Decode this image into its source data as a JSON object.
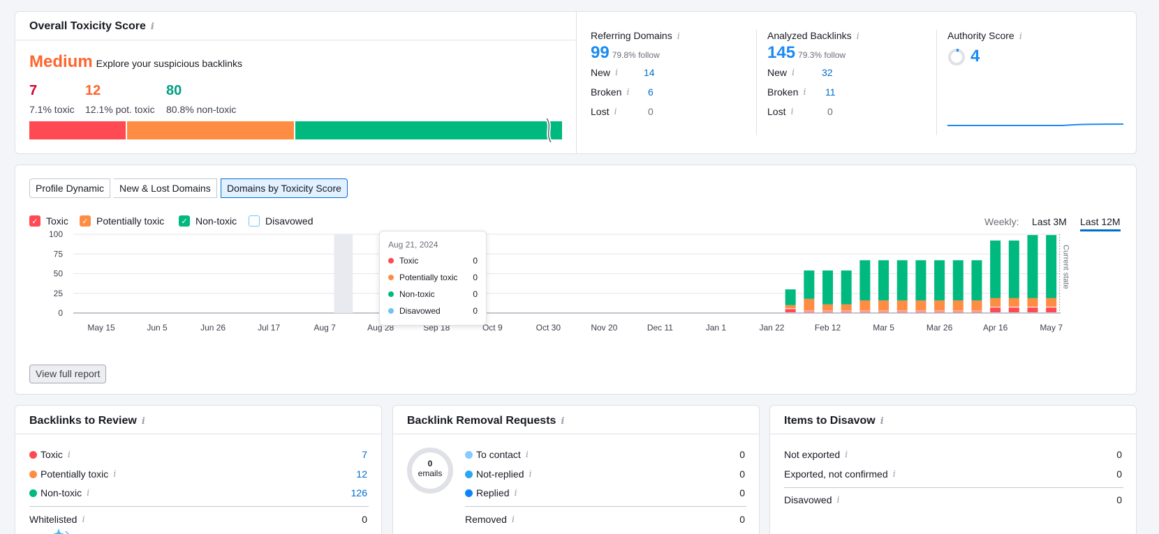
{
  "toxicity": {
    "title": "Overall Toxicity Score",
    "level": "Medium",
    "level_color": "#ff642d",
    "explore": "Explore your suspicious backlinks",
    "toxic_count": "7",
    "toxic_pct": "7.1% toxic",
    "pot_count": "12",
    "pot_pct": "12.1% pot. toxic",
    "non_count": "80",
    "non_pct": "80.8% non-toxic",
    "bar": {
      "toxic": 0.183,
      "pot": 0.316,
      "non": 0.501
    },
    "colors": {
      "toxic": "#ff4953",
      "pot": "#ff8c43",
      "non": "#00b97e"
    }
  },
  "referring": {
    "title": "Referring Domains",
    "value": "99",
    "follow": "79.8% follow",
    "rows": [
      {
        "label": "New",
        "value": "14"
      },
      {
        "label": "Broken",
        "value": "6"
      },
      {
        "label": "Lost",
        "value": "0"
      }
    ]
  },
  "analyzed": {
    "title": "Analyzed Backlinks",
    "value": "145",
    "follow": "79.3% follow",
    "rows": [
      {
        "label": "New",
        "value": "32"
      },
      {
        "label": "Broken",
        "value": "11"
      },
      {
        "label": "Lost",
        "value": "0"
      }
    ]
  },
  "authority": {
    "title": "Authority Score",
    "value": "4"
  },
  "tabs": [
    "Profile Dynamic",
    "New & Lost Domains",
    "Domains by Toxicity Score"
  ],
  "legend": [
    {
      "label": "Toxic",
      "color": "#ff4953",
      "checked": true
    },
    {
      "label": "Potentially toxic",
      "color": "#ff8c43",
      "checked": true
    },
    {
      "label": "Non-toxic",
      "color": "#00b97e",
      "checked": true
    },
    {
      "label": "Disavowed",
      "color": "#6fc4f5",
      "checked": false
    }
  ],
  "period": {
    "label": "Weekly:",
    "opt1": "Last 3M",
    "opt2": "Last 12M"
  },
  "tooltip": {
    "date": "Aug 21, 2024",
    "rows": [
      {
        "label": "Toxic",
        "value": "0",
        "color": "#ff4953"
      },
      {
        "label": "Potentially toxic",
        "value": "0",
        "color": "#ff8c43"
      },
      {
        "label": "Non-toxic",
        "value": "0",
        "color": "#00b97e"
      },
      {
        "label": "Disavowed",
        "value": "0",
        "color": "#6fc4f5"
      }
    ]
  },
  "chart_data": {
    "type": "bar",
    "stacked": true,
    "y_ticks": [
      0,
      25,
      50,
      75,
      100
    ],
    "ylim": [
      0,
      100
    ],
    "x_ticks": [
      "May 15",
      "Jun 5",
      "Jun 26",
      "Jul 17",
      "Aug 7",
      "Aug 28",
      "Sep 18",
      "Oct 9",
      "Oct 30",
      "Nov 20",
      "Dec 11",
      "Jan 1",
      "Jan 22",
      "Feb 12",
      "Mar 5",
      "Mar 26",
      "Apr 16",
      "May 7"
    ],
    "categories_count": 53,
    "x": [
      "Jan 29",
      "Feb 5",
      "Feb 12",
      "Feb 19",
      "Feb 26",
      "Mar 5",
      "Mar 12",
      "Mar 19",
      "Mar 26",
      "Apr 2",
      "Apr 9",
      "Apr 16",
      "Apr 23",
      "Apr 30",
      "May 7"
    ],
    "series": [
      {
        "name": "Toxic",
        "values": [
          5,
          2,
          2,
          2,
          2,
          2,
          2,
          2,
          2,
          2,
          2,
          7,
          7,
          7,
          7
        ]
      },
      {
        "name": "Potentially toxic",
        "values": [
          5,
          16,
          9,
          9,
          14,
          14,
          14,
          14,
          14,
          14,
          14,
          12,
          12,
          12,
          12
        ]
      },
      {
        "name": "Non-toxic",
        "values": [
          20,
          36,
          43,
          43,
          51,
          51,
          51,
          51,
          51,
          51,
          51,
          73,
          73,
          80,
          80
        ]
      }
    ],
    "current_state_label": "Current state"
  },
  "view_full": "View full report",
  "review": {
    "title": "Backlinks to Review",
    "rows": [
      {
        "label": "Toxic",
        "value": "7",
        "color": "#ff4953"
      },
      {
        "label": "Potentially toxic",
        "value": "12",
        "color": "#ff8c43"
      },
      {
        "label": "Non-toxic",
        "value": "126",
        "color": "#00b97e"
      }
    ],
    "white_label": "Whitelisted",
    "white_value": "0"
  },
  "removal": {
    "title": "Backlink Removal Requests",
    "ring_value": "0",
    "ring_label": "emails",
    "rows": [
      {
        "label": "To contact",
        "value": "0",
        "color": "#85cbff"
      },
      {
        "label": "Not-replied",
        "value": "0",
        "color": "#2aa6f2"
      },
      {
        "label": "Replied",
        "value": "0",
        "color": "#0a84ff"
      }
    ],
    "removed_label": "Removed",
    "removed_value": "0"
  },
  "disavow": {
    "title": "Items to Disavow",
    "rows": [
      {
        "label": "Not exported",
        "value": "0"
      },
      {
        "label": "Exported, not confirmed",
        "value": "0"
      }
    ],
    "disavowed_label": "Disavowed",
    "disavowed_value": "0"
  }
}
